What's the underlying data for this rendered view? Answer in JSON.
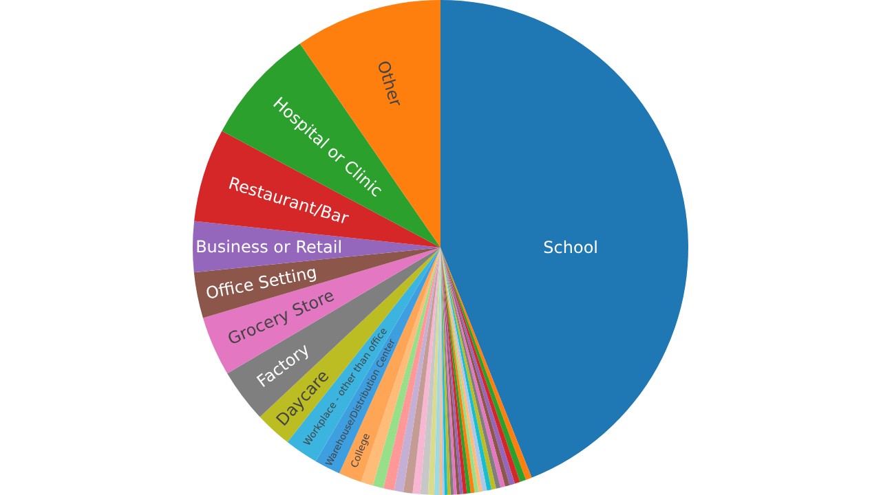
{
  "chart_data": {
    "type": "pie",
    "categories": [
      "School",
      null,
      null,
      null,
      null,
      null,
      null,
      null,
      null,
      null,
      null,
      null,
      null,
      null,
      null,
      null,
      null,
      null,
      null,
      null,
      null,
      null,
      null,
      null,
      null,
      null,
      null,
      null,
      null,
      null,
      null,
      null,
      null,
      "College",
      "Warehouse/Distribution Center",
      "Workplace - other than office",
      "Daycare",
      "Factory",
      "Grocery Store",
      "Office Setting",
      "Business or Retail",
      "Restaurant/Bar",
      "Hospital or Clinic",
      "Other"
    ],
    "values": [
      44,
      0.4,
      0.4,
      0.35,
      0.35,
      0.3,
      0.3,
      0.3,
      0.3,
      0.3,
      0.3,
      0.25,
      0.25,
      0.25,
      0.25,
      0.25,
      0.2,
      0.2,
      0.2,
      0.2,
      0.2,
      0.2,
      0.15,
      0.15,
      0.35,
      0.4,
      0.5,
      0.5,
      0.6,
      0.6,
      0.7,
      0.7,
      0.8,
      1.5,
      1.7,
      2.2,
      2.4,
      3.5,
      3.9,
      3,
      3.3,
      6.1,
      7.6,
      9.6
    ],
    "colors": [
      "#1f77b4",
      "#ff7f0e",
      "#2ca02c",
      "#d62728",
      "#9467bd",
      "#8c564b",
      "#e377c2",
      "#7f7f7f",
      "#bcbd22",
      "#17becf",
      "#aec7e8",
      "#ffbb78",
      "#98df8a",
      "#ff7f0e",
      "#2ca02c",
      "#d62728",
      "#9467bd",
      "#8c564b",
      "#e377c2",
      "#7f7f7f",
      "#bcbd22",
      "#17becf",
      "#aec7e8",
      "#ffbb78",
      "#9edae5",
      "#dbdb8d",
      "#c7c7c7",
      "#f7b6d2",
      "#c49c94",
      "#c5b0d5",
      "#ff9896",
      "#98df8a",
      "#ffbb78",
      "#ffa556",
      "#3d9ee0",
      "#3bb5e0",
      "#bcbd22",
      "#7f7f7f",
      "#e377c2",
      "#8c564b",
      "#9467bd",
      "#d62728",
      "#2ca02c",
      "#ff7f0e"
    ]
  }
}
